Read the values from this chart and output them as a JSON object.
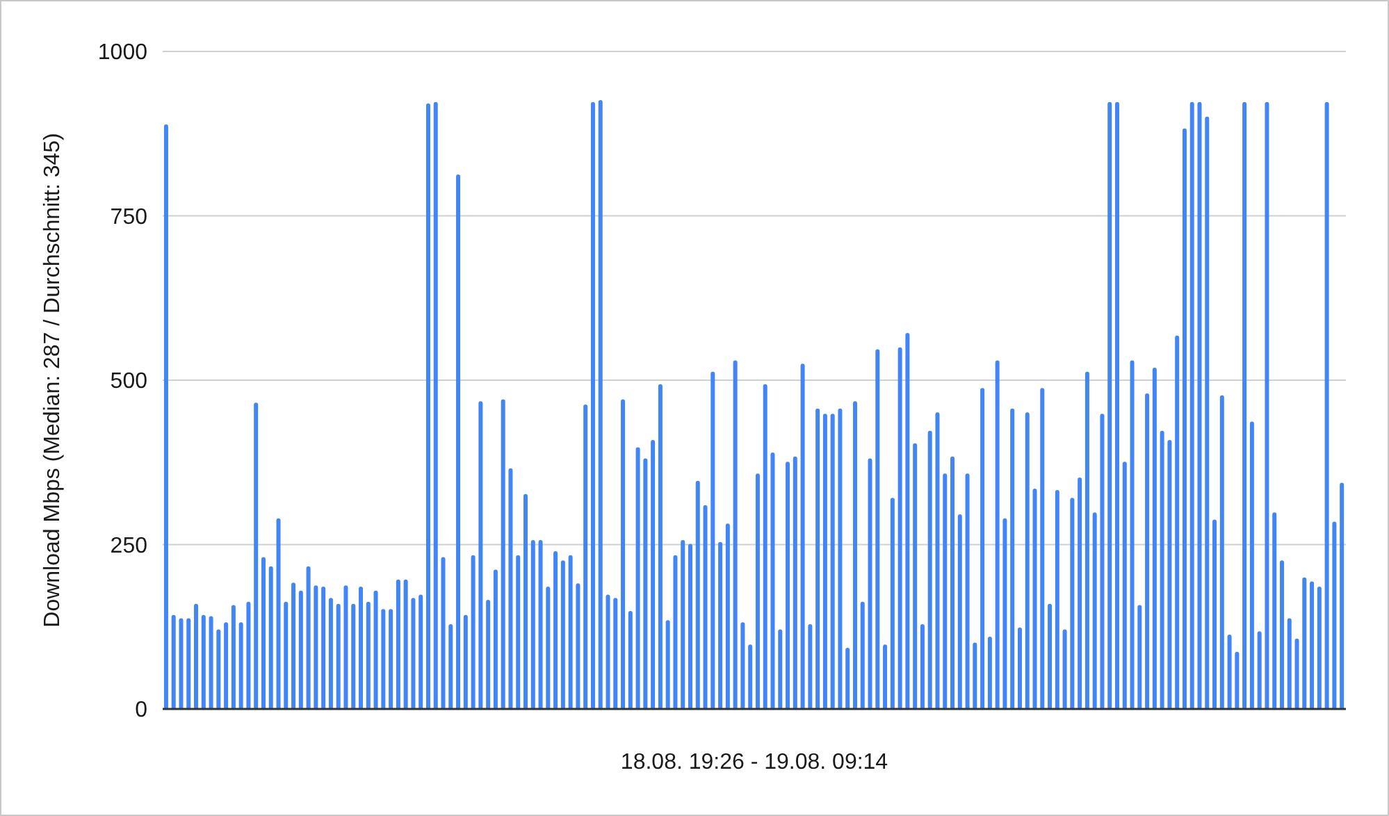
{
  "chart_data": {
    "type": "bar",
    "xlabel": "18.08. 19:26 - 19.08. 09:14",
    "ylabel": "Download Mbps (Median: 287 / Durchschnitt: 345)",
    "categories": [
      null,
      null,
      null,
      null,
      null,
      null,
      null,
      null,
      null,
      null,
      null,
      null,
      null,
      null,
      null,
      null,
      null,
      null,
      null,
      null,
      null,
      null,
      null,
      null,
      null,
      null,
      null,
      null,
      null,
      null,
      null,
      null,
      null,
      null,
      null,
      null,
      null,
      null,
      null,
      null,
      null,
      null,
      null,
      null,
      null,
      null,
      null,
      null,
      null,
      null,
      null,
      null,
      null,
      null,
      null,
      null,
      null,
      null,
      null,
      null,
      null,
      null,
      null,
      null,
      null,
      null,
      null,
      null,
      null,
      null,
      null,
      null,
      null,
      null,
      null,
      null,
      null,
      null,
      null,
      null,
      null,
      null,
      null,
      null,
      null,
      null,
      null,
      null,
      null,
      null,
      null,
      null,
      null,
      null,
      null,
      null,
      null,
      null,
      null,
      null,
      null,
      null,
      null,
      null,
      null,
      null,
      null,
      null,
      null,
      null,
      null,
      null,
      null,
      null,
      null,
      null,
      null,
      null,
      null,
      null,
      null,
      null,
      null,
      null,
      null,
      null,
      null,
      null,
      null,
      null,
      null,
      null,
      null,
      null,
      null,
      null,
      null,
      null,
      null,
      null,
      null,
      null,
      null,
      null,
      null,
      null,
      null,
      null,
      null,
      null,
      null,
      null,
      null,
      null,
      null,
      null,
      null,
      null
    ],
    "values": [
      889,
      143,
      138,
      138,
      160,
      143,
      141,
      121,
      132,
      158,
      132,
      163,
      466,
      231,
      217,
      290,
      163,
      192,
      180,
      217,
      188,
      186,
      169,
      160,
      188,
      160,
      186,
      163,
      180,
      152,
      152,
      197,
      197,
      169,
      174,
      921,
      923,
      231,
      129,
      813,
      143,
      234,
      468,
      166,
      212,
      471,
      366,
      234,
      327,
      257,
      257,
      186,
      240,
      226,
      234,
      191,
      463,
      923,
      926,
      174,
      169,
      471,
      149,
      398,
      381,
      409,
      494,
      135,
      234,
      257,
      251,
      347,
      310,
      513,
      254,
      282,
      530,
      132,
      98,
      358,
      494,
      390,
      121,
      376,
      384,
      525,
      129,
      457,
      449,
      449,
      457,
      93,
      468,
      163,
      381,
      547,
      98,
      321,
      550,
      572,
      404,
      129,
      423,
      451,
      358,
      384,
      296,
      358,
      101,
      488,
      110,
      530,
      290,
      457,
      124,
      451,
      335,
      488,
      160,
      333,
      121,
      321,
      352,
      513,
      299,
      449,
      923,
      923,
      376,
      530,
      158,
      480,
      519,
      423,
      409,
      568,
      883,
      923,
      923,
      901,
      288,
      477,
      113,
      87,
      923,
      437,
      118,
      923,
      299,
      226,
      138,
      107,
      200,
      194,
      186,
      923,
      285,
      344
    ],
    "color": "#4285f4",
    "ylim": [
      0,
      1000
    ],
    "yticks": [
      0,
      250,
      500,
      750,
      1000
    ],
    "grid": "y"
  }
}
